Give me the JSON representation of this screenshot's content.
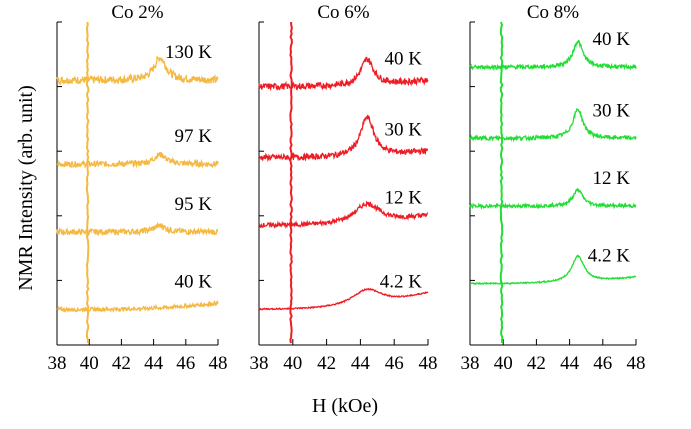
{
  "chart_data": [
    {
      "type": "line",
      "title": "Co 2%",
      "xlabel": "H (kOe)",
      "ylabel": "NMR Intensity (arb. unit)",
      "xlim": [
        38,
        48
      ],
      "x_ticks": [
        "38",
        "40",
        "42",
        "44",
        "46",
        "48"
      ],
      "color": "#f5b942",
      "peak_x": 44.4,
      "artifact_x": 39.9,
      "series": [
        {
          "label": "130 K",
          "baseline": 0.82,
          "peak_height": 0.07,
          "peak_width": 0.15,
          "slope": 0.0,
          "noise": 0.012
        },
        {
          "label": "97 K",
          "baseline": 0.56,
          "peak_height": 0.03,
          "peak_width": 0.15,
          "slope": 0.0,
          "noise": 0.009
        },
        {
          "label": "95 K",
          "baseline": 0.35,
          "peak_height": 0.02,
          "peak_width": 0.15,
          "slope": 0.0,
          "noise": 0.009
        },
        {
          "label": "40 K",
          "baseline": 0.11,
          "peak_height": 0.0,
          "peak_width": 0.15,
          "slope": 0.02,
          "noise": 0.006
        }
      ]
    },
    {
      "type": "line",
      "title": "Co 6%",
      "xlabel": "H (kOe)",
      "ylabel": "",
      "xlim": [
        38,
        48
      ],
      "x_ticks": [
        "38",
        "40",
        "42",
        "44",
        "46",
        "48"
      ],
      "color": "#ee1c24",
      "peak_x": 44.4,
      "artifact_x": 39.9,
      "series": [
        {
          "label": "40 K",
          "baseline": 0.8,
          "peak_height": 0.08,
          "peak_width": 0.15,
          "slope": 0.02,
          "noise": 0.01
        },
        {
          "label": "30 K",
          "baseline": 0.58,
          "peak_height": 0.12,
          "peak_width": 0.16,
          "slope": 0.02,
          "noise": 0.009
        },
        {
          "label": "12 K",
          "baseline": 0.37,
          "peak_height": 0.06,
          "peak_width": 0.3,
          "slope": 0.03,
          "noise": 0.007
        },
        {
          "label": "4.2 K",
          "baseline": 0.11,
          "peak_height": 0.05,
          "peak_width": 0.35,
          "slope": 0.05,
          "noise": 0.002
        }
      ]
    },
    {
      "type": "line",
      "title": "Co 8%",
      "xlabel": "H (kOe)",
      "ylabel": "",
      "xlim": [
        38,
        48
      ],
      "x_ticks": [
        "38",
        "40",
        "42",
        "44",
        "46",
        "48"
      ],
      "color": "#22dd33",
      "peak_x": 44.5,
      "artifact_x": 39.9,
      "series": [
        {
          "label": "40 K",
          "baseline": 0.86,
          "peak_height": 0.08,
          "peak_width": 0.12,
          "slope": 0.0,
          "noise": 0.006
        },
        {
          "label": "30 K",
          "baseline": 0.64,
          "peak_height": 0.09,
          "peak_width": 0.12,
          "slope": 0.0,
          "noise": 0.006
        },
        {
          "label": "12 K",
          "baseline": 0.43,
          "peak_height": 0.05,
          "peak_width": 0.12,
          "slope": 0.0,
          "noise": 0.005
        },
        {
          "label": "4.2 K",
          "baseline": 0.19,
          "peak_height": 0.08,
          "peak_width": 0.15,
          "slope": 0.02,
          "noise": 0.002
        }
      ]
    }
  ]
}
